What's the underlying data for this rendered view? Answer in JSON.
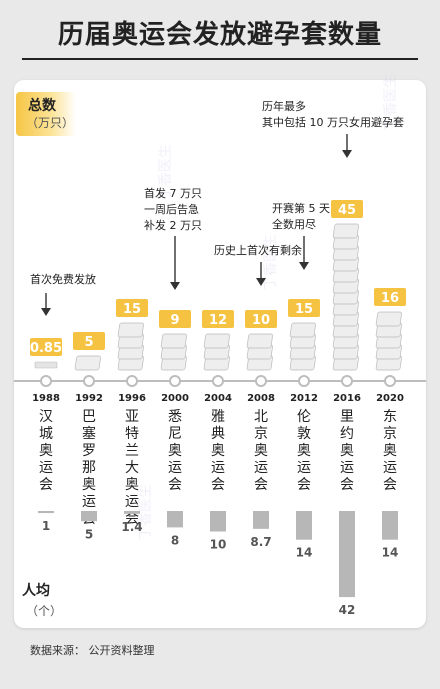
{
  "title": "历届奥运会发放避孕套数量",
  "total_label": "总数",
  "total_unit": "（万只）",
  "percap_label": "人均",
  "percap_unit": "（个）",
  "source": "数据来源：  公开资料整理",
  "watermark": "丁香医生",
  "colors": {
    "badge": "#f5c242",
    "percap_bar": "#b7b7b7",
    "axis": "#bdbdbd"
  },
  "annotations": [
    {
      "lines": [
        "首次免费发放"
      ]
    },
    {
      "lines": [
        "首发 7 万只",
        "一周后告急",
        "补发 2 万只"
      ]
    },
    {
      "lines": [
        "历史上首次有剩余"
      ]
    },
    {
      "lines": [
        "开赛第 5 天",
        "全数用尽"
      ]
    },
    {
      "lines": [
        "历年最多",
        "其中包括 10 万只女用避孕套"
      ]
    }
  ],
  "chart_data": {
    "type": "bar",
    "categories": [
      "1988",
      "1992",
      "1996",
      "2000",
      "2004",
      "2008",
      "2012",
      "2016",
      "2020"
    ],
    "cities": [
      "汉城奥运会",
      "巴塞罗那奥运会",
      "亚特兰大奥运会",
      "悉尼奥运会",
      "雅典奥运会",
      "北京奥运会",
      "伦敦奥运会",
      "里约奥运会",
      "东京奥运会"
    ],
    "series": [
      {
        "name": "总数",
        "values": [
          0.85,
          5,
          15,
          9,
          12,
          10,
          15,
          45,
          16
        ],
        "labels": [
          "0.85",
          "5",
          "15",
          "9",
          "12",
          "10",
          "15",
          "45",
          "16"
        ]
      },
      {
        "name": "人均",
        "values": [
          1,
          5,
          1.4,
          8,
          10,
          8.7,
          14,
          42,
          14
        ],
        "labels": [
          "1",
          "5",
          "1.4",
          "8",
          "10",
          "8.7",
          "14",
          "42",
          "14"
        ]
      }
    ]
  }
}
